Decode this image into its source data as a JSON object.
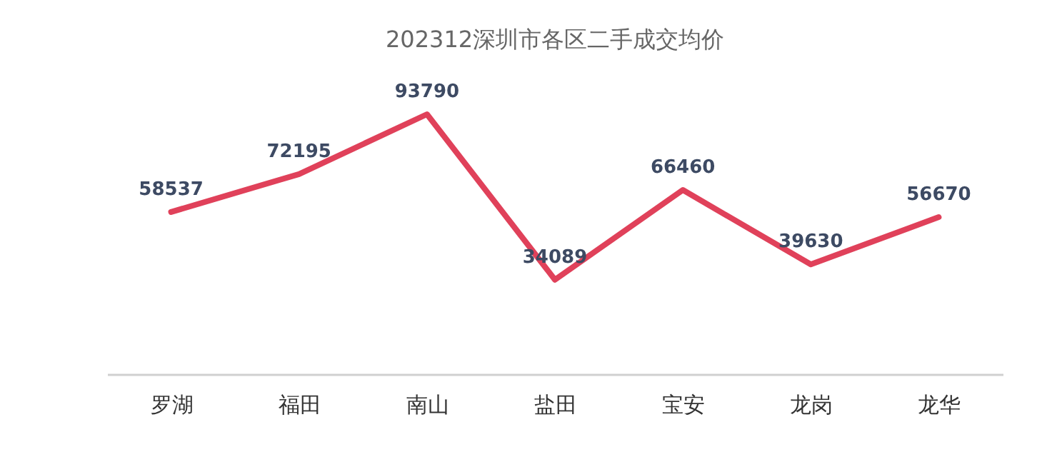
{
  "chart_data": {
    "type": "line",
    "title": "202312深圳市各区二手成交均价",
    "categories": [
      "罗湖",
      "福田",
      "南山",
      "盐田",
      "宝安",
      "龙岗",
      "龙华"
    ],
    "series": [
      {
        "color": "#e0415a",
        "values": [
          58537,
          72195,
          93790,
          34089,
          66460,
          39630,
          56670
        ]
      }
    ],
    "data_labels": true,
    "grid": false,
    "marker": "none",
    "line_style": "solid"
  }
}
